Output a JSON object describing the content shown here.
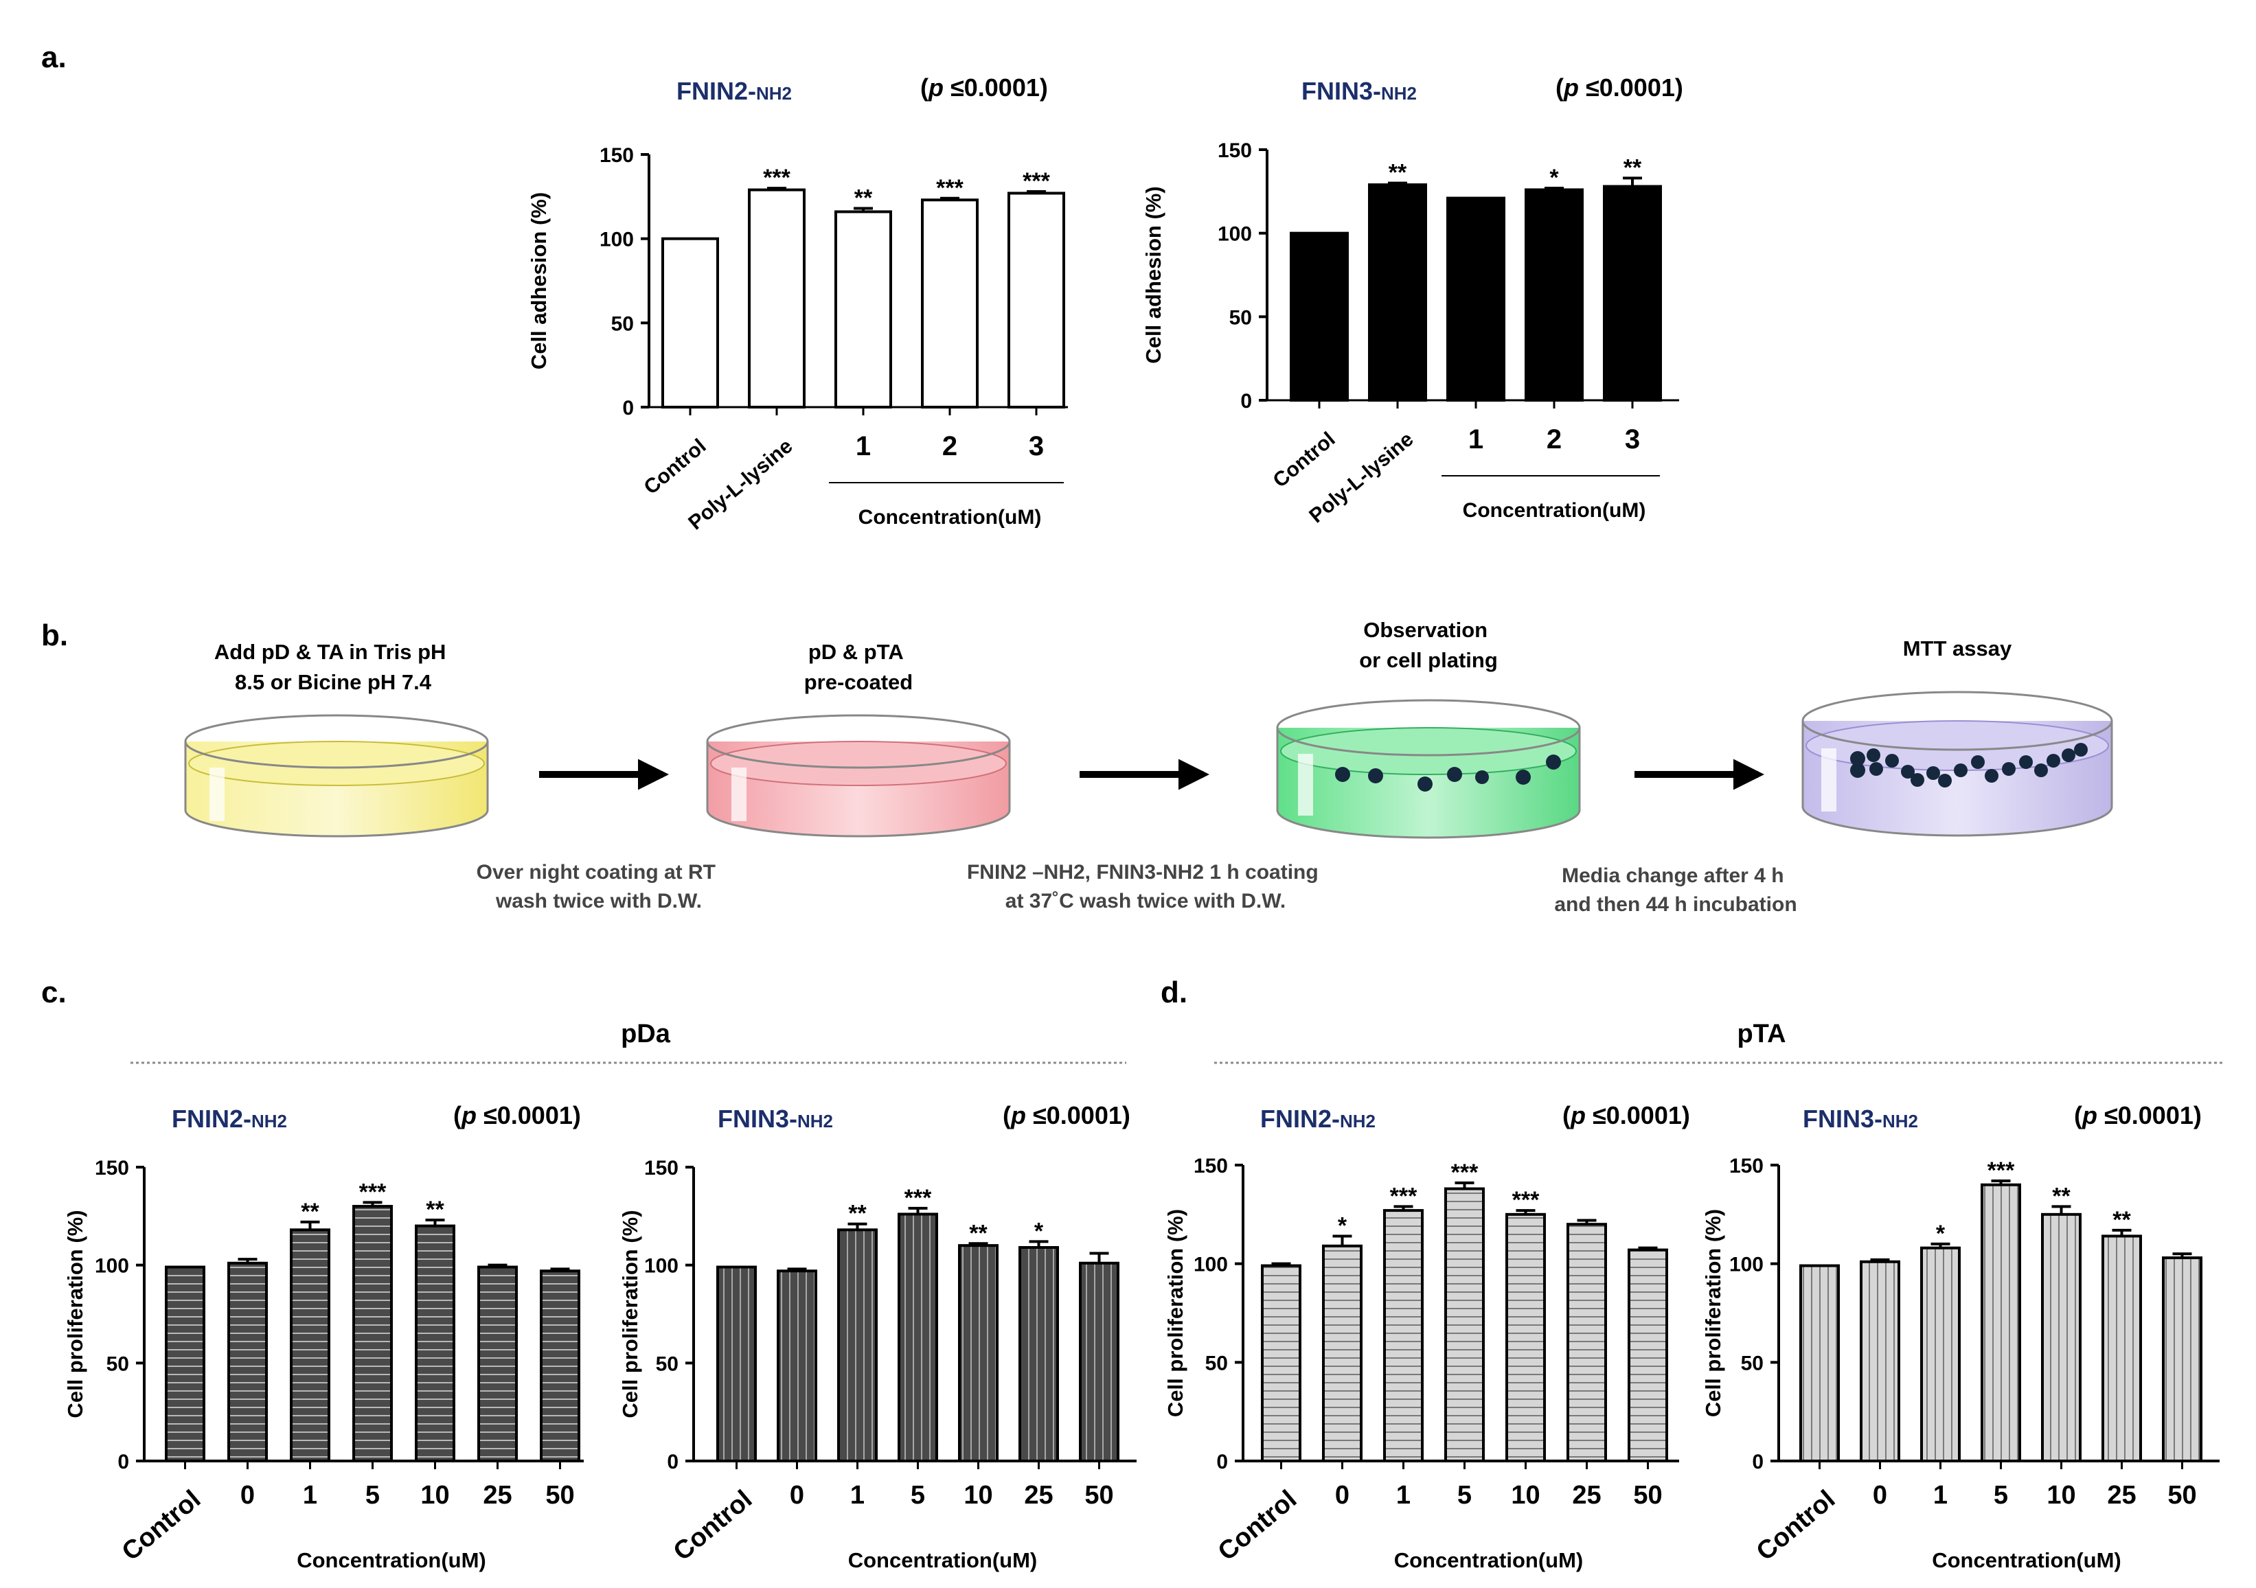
{
  "panel_labels": {
    "a": "a.",
    "b": "b.",
    "c": "c.",
    "d": "d."
  },
  "colors": {
    "ink": "#000000",
    "title_blue": "#1c2f6b",
    "bar_a2": "#000000",
    "bar_c": "#4a4a4a",
    "bar_d": "#d2d2d2",
    "dish_yellow": "#f3e86a",
    "dish_red": "#f2a0a6",
    "dish_green": "#5fe08a",
    "dish_purple": "#c9c2ec",
    "cell_dot": "#15283d",
    "divider": "#8a8a8a",
    "note_text": "#444444"
  },
  "section_c_title": "pDa",
  "section_d_title": "pTA",
  "chart_data": [
    {
      "id": "a1",
      "type": "bar",
      "title_main": "FNIN2-",
      "title_sub": "NH2",
      "pvalue_open": "(",
      "pvalue_p": "p",
      "pvalue_rest": " ≤0.0001)",
      "ylabel": "Cell adhesion (%)",
      "ylim": [
        0,
        150
      ],
      "yticks": [
        0,
        50,
        100,
        150
      ],
      "categories": [
        "Control",
        "Poly-L-lysine",
        "1",
        "2",
        "3"
      ],
      "values": [
        100,
        129,
        116,
        123,
        127
      ],
      "errors": [
        0,
        1,
        2,
        1,
        1
      ],
      "significance": [
        "",
        "***",
        "**",
        "***",
        "***"
      ],
      "group_label": "Concentration(uM)",
      "group_start": 2,
      "bar_style": "white"
    },
    {
      "id": "a2",
      "type": "bar",
      "title_main": "FNIN3-",
      "title_sub": "NH2",
      "pvalue_open": "(",
      "pvalue_p": "p",
      "pvalue_rest": " ≤0.0001)",
      "ylabel": "Cell adhesion (%)",
      "ylim": [
        0,
        150
      ],
      "yticks": [
        0,
        50,
        100,
        150
      ],
      "categories": [
        "Control",
        "Poly-L-lysine",
        "1",
        "2",
        "3"
      ],
      "values": [
        100,
        129,
        121,
        126,
        128
      ],
      "errors": [
        0,
        1,
        0,
        1,
        5
      ],
      "significance": [
        "",
        "**",
        "",
        "*",
        "**"
      ],
      "group_label": "Concentration(uM)",
      "group_start": 2,
      "bar_style": "black"
    },
    {
      "id": "c1",
      "type": "bar",
      "title_main": "FNIN2-",
      "title_sub": "NH2",
      "pvalue_open": "(",
      "pvalue_p": "p",
      "pvalue_rest": " ≤0.0001)",
      "ylabel": "Cell proliferation (%)",
      "xlabel": "Concentration(uM)",
      "ylim": [
        0,
        150
      ],
      "yticks": [
        0,
        50,
        100,
        150
      ],
      "categories": [
        "Control",
        "0",
        "1",
        "5",
        "10",
        "25",
        "50"
      ],
      "values": [
        99,
        101,
        118,
        130,
        120,
        99,
        97
      ],
      "errors": [
        0,
        2,
        4,
        2,
        3,
        1,
        1
      ],
      "significance": [
        "",
        "",
        "**",
        "***",
        "**",
        "",
        ""
      ],
      "bar_style": "dark-h"
    },
    {
      "id": "c2",
      "type": "bar",
      "title_main": "FNIN3-",
      "title_sub": "NH2",
      "pvalue_open": "(",
      "pvalue_p": "p",
      "pvalue_rest": " ≤0.0001)",
      "ylabel": "Cell proliferation (%)",
      "xlabel": "Concentration(uM)",
      "ylim": [
        0,
        150
      ],
      "yticks": [
        0,
        50,
        100,
        150
      ],
      "categories": [
        "Control",
        "0",
        "1",
        "5",
        "10",
        "25",
        "50"
      ],
      "values": [
        99,
        97,
        118,
        126,
        110,
        109,
        101
      ],
      "errors": [
        0,
        1,
        3,
        3,
        1,
        3,
        5
      ],
      "significance": [
        "",
        "",
        "**",
        "***",
        "**",
        "*",
        ""
      ],
      "bar_style": "dark-v"
    },
    {
      "id": "d1",
      "type": "bar",
      "title_main": "FNIN2-",
      "title_sub": "NH2",
      "pvalue_open": "(",
      "pvalue_p": "p",
      "pvalue_rest": " ≤0.0001)",
      "ylabel": "Cell proliferation (%)",
      "xlabel": "Concentration(uM)",
      "ylim": [
        0,
        150
      ],
      "yticks": [
        0,
        50,
        100,
        150
      ],
      "categories": [
        "Control",
        "0",
        "1",
        "5",
        "10",
        "25",
        "50"
      ],
      "values": [
        99,
        109,
        127,
        138,
        125,
        120,
        107
      ],
      "errors": [
        1,
        5,
        2,
        3,
        2,
        2,
        1
      ],
      "significance": [
        "",
        "*",
        "***",
        "***",
        "***",
        "",
        ""
      ],
      "bar_style": "light-h"
    },
    {
      "id": "d2",
      "type": "bar",
      "title_main": "FNIN3-",
      "title_sub": "NH2",
      "pvalue_open": "(",
      "pvalue_p": "p",
      "pvalue_rest": " ≤0.0001)",
      "ylabel": "Cell proliferation (%)",
      "xlabel": "Concentration(uM)",
      "ylim": [
        0,
        150
      ],
      "yticks": [
        0,
        50,
        100,
        150
      ],
      "categories": [
        "Control",
        "0",
        "1",
        "5",
        "10",
        "25",
        "50"
      ],
      "values": [
        99,
        101,
        108,
        140,
        125,
        114,
        103
      ],
      "errors": [
        0,
        1,
        2,
        2,
        4,
        3,
        2
      ],
      "significance": [
        "",
        "",
        "*",
        "***",
        "**",
        "**",
        ""
      ],
      "bar_style": "light-v"
    }
  ],
  "workflow": {
    "steps": [
      {
        "label_lines": [
          "Add pD & TA in Tris  pH",
          "8.5 or Bicine pH 7.4"
        ]
      },
      {
        "label_lines": [
          "pD & pTA",
          "pre-coated"
        ]
      },
      {
        "label_lines": [
          "Observation",
          "or cell plating"
        ]
      },
      {
        "label_lines": [
          "MTT assay"
        ]
      }
    ],
    "notes": [
      {
        "lines": [
          "Over night coating at RT",
          "wash twice with D.W."
        ]
      },
      {
        "lines": [
          "FNIN2 –NH2, FNIN3-NH2  1 h coating",
          "at 37˚C wash twice with D.W."
        ]
      },
      {
        "lines": [
          "Media change after 4 h",
          "and then 44 h incubation"
        ]
      }
    ]
  }
}
